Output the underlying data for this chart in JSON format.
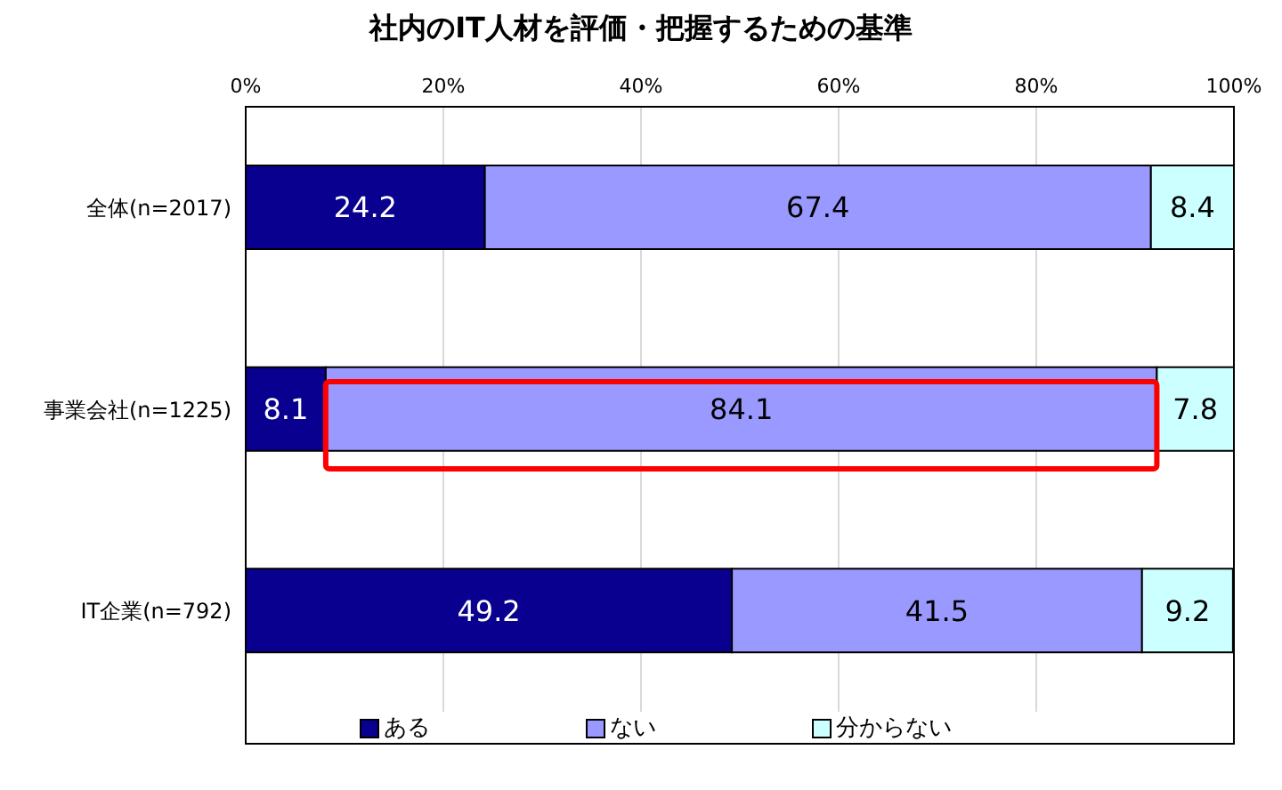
{
  "chart_data": {
    "type": "bar",
    "title": "社内のIT人材を評価・把握するための基準",
    "orientation": "horizontal",
    "stacked": true,
    "categories": [
      "全体(n=2017)",
      "事業会社(n=1225)",
      "IT企業(n=792)"
    ],
    "series": [
      {
        "name": "ある",
        "color": "#0a0090",
        "values": [
          24.2,
          8.1,
          49.2
        ]
      },
      {
        "name": "ない",
        "color": "#9999ff",
        "values": [
          67.4,
          84.1,
          41.5
        ]
      },
      {
        "name": "分からない",
        "color": "#ccffff",
        "values": [
          8.4,
          7.8,
          9.2
        ]
      }
    ],
    "xlim": [
      0,
      100
    ],
    "xticks": [
      {
        "value": 0,
        "label": "0%"
      },
      {
        "value": 20,
        "label": "20%"
      },
      {
        "value": 40,
        "label": "40%"
      },
      {
        "value": 60,
        "label": "60%"
      },
      {
        "value": 80,
        "label": "80%"
      },
      {
        "value": 100,
        "label": "100%"
      }
    ],
    "grid": "x",
    "legend": "bottom",
    "data_labels": true
  }
}
